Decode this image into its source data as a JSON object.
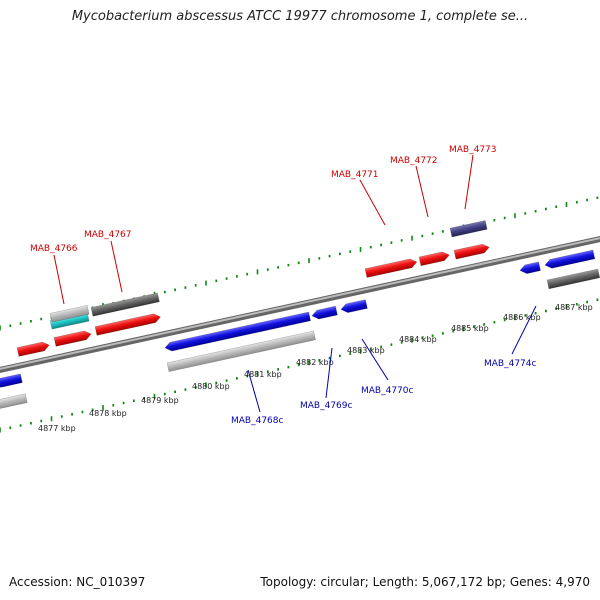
{
  "title": "Mycobacterium abscessus ATCC 19977 chromosome 1, complete se...",
  "footer": {
    "accession": "Accession: NC_010397",
    "topology": "Topology: circular; Length: 5,067,172 bp; Genes: 4,970"
  },
  "colors": {
    "forward_cds": "#ee1111",
    "reverse_cds": "#1111dd",
    "forward_label": "#cc0000",
    "reverse_label": "#0000aa",
    "grey_feature": "#666666",
    "light_grey_feature": "#bbbbbb",
    "cyan_feature": "#22cccc",
    "purple_feature": "#444488",
    "tick": "#118811",
    "backbone": "#888888"
  },
  "scale_labels": [
    "4877 kbp",
    "4878 kbp",
    "4879 kbp",
    "4880 kbp",
    "4881 kbp",
    "4882 kbp",
    "4883 kbp",
    "4884 kbp",
    "4885 kbp",
    "4886 kbp",
    "4887 kbp"
  ],
  "gene_labels": {
    "forward": [
      "MAB_4766",
      "MAB_4767",
      "MAB_4771",
      "MAB_4772",
      "MAB_4773"
    ],
    "reverse": [
      "MAB_4768c",
      "MAB_4769c",
      "MAB_4770c",
      "MAB_4774c"
    ]
  }
}
